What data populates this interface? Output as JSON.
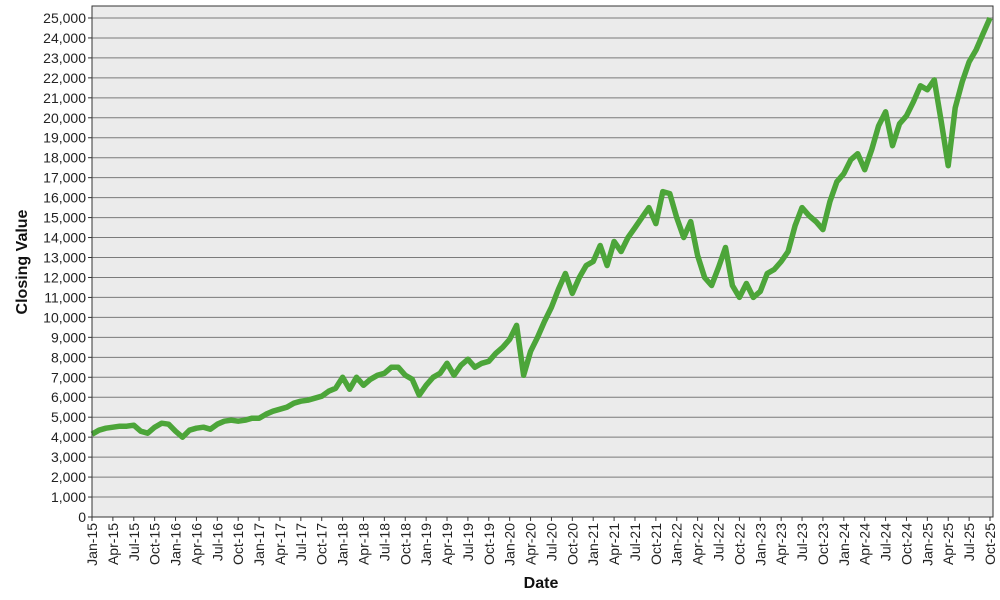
{
  "chart_data": {
    "type": "line",
    "title": "",
    "xlabel": "Date",
    "ylabel": "Closing Value",
    "ylim": [
      0,
      25600
    ],
    "yticks": [
      "0",
      "1,000",
      "2,000",
      "3,000",
      "4,000",
      "5,000",
      "6,000",
      "7,000",
      "8,000",
      "9,000",
      "10,000",
      "11,000",
      "12,000",
      "13,000",
      "14,000",
      "15,000",
      "16,000",
      "17,000",
      "18,000",
      "19,000",
      "20,000",
      "21,000",
      "22,000",
      "23,000",
      "24,000",
      "25,000"
    ],
    "xticks": [
      "Jan-15",
      "Apr-15",
      "Jul-15",
      "Oct-15",
      "Jan-16",
      "Apr-16",
      "Jul-16",
      "Oct-16",
      "Jan-17",
      "Apr-17",
      "Jul-17",
      "Oct-17",
      "Jan-18",
      "Apr-18",
      "Jul-18",
      "Oct-18",
      "Jan-19",
      "Apr-19",
      "Jul-19",
      "Oct-19",
      "Jan-20",
      "Apr-20",
      "Jul-20",
      "Oct-20",
      "Jan-21",
      "Apr-21",
      "Jul-21",
      "Oct-21",
      "Jan-22",
      "Apr-22",
      "Jul-22",
      "Oct-22",
      "Jan-23",
      "Apr-23",
      "Jul-23",
      "Oct-23",
      "Jan-24",
      "Apr-24",
      "Jul-24",
      "Oct-24",
      "Jan-25",
      "Apr-25",
      "Jul-25",
      "Oct-25"
    ],
    "grid": true,
    "colors": {
      "line": "#4ca539",
      "plot_background": "#ebebeb",
      "grid": "#7a7a7a"
    },
    "x_start": "2015-01",
    "x_step": "1 month",
    "values": [
      4150,
      4350,
      4450,
      4500,
      4550,
      4550,
      4600,
      4300,
      4200,
      4500,
      4700,
      4650,
      4300,
      4000,
      4350,
      4450,
      4500,
      4400,
      4650,
      4800,
      4850,
      4800,
      4850,
      4950,
      4950,
      5150,
      5300,
      5400,
      5500,
      5700,
      5800,
      5850,
      5950,
      6050,
      6300,
      6450,
      7000,
      6400,
      7000,
      6600,
      6900,
      7100,
      7200,
      7500,
      7500,
      7100,
      6900,
      6100,
      6600,
      7000,
      7200,
      7700,
      7100,
      7600,
      7900,
      7500,
      7700,
      7800,
      8200,
      8500,
      8900,
      9600,
      7100,
      8300,
      9000,
      9800,
      10500,
      11400,
      12200,
      11200,
      12000,
      12600,
      12800,
      13600,
      12600,
      13800,
      13300,
      14000,
      14500,
      15000,
      15500,
      14700,
      16300,
      16200,
      15000,
      14000,
      14800,
      13100,
      12000,
      11600,
      12500,
      13500,
      11600,
      11000,
      11700,
      11000,
      11300,
      12200,
      12400,
      12800,
      13300,
      14600,
      15500,
      15100,
      14800,
      14400,
      15800,
      16800,
      17200,
      17900,
      18200,
      17400,
      18400,
      19600,
      20300,
      18600,
      19700,
      20100,
      20800,
      21600,
      21400,
      21900,
      19800,
      17600,
      20500,
      21800,
      22800,
      23400,
      24200,
      25000
    ]
  }
}
